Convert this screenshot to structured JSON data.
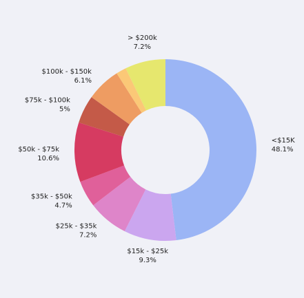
{
  "chart_data": {
    "type": "pie",
    "variant": "donut",
    "title": "",
    "slices": [
      {
        "label": "<$15K",
        "value": 48.1,
        "value_label": "48.1%",
        "color": "#9bb5f5"
      },
      {
        "label": "$15k - $25k",
        "value": 9.3,
        "value_label": "9.3%",
        "color": "#cba6ef"
      },
      {
        "label": "$25k - $35k",
        "value": 7.2,
        "value_label": "7.2%",
        "color": "#de85c9"
      },
      {
        "label": "$35k - $50k",
        "value": 4.7,
        "value_label": "4.7%",
        "color": "#e0609a"
      },
      {
        "label": "$50k - $75k",
        "value": 10.6,
        "value_label": "10.6%",
        "color": "#d63b61"
      },
      {
        "label": "$75k - $100k",
        "value": 5,
        "value_label": "5%",
        "color": "#c45a48"
      },
      {
        "label": "$100k - $150k",
        "value": 6.1,
        "value_label": "6.1%",
        "color": "#ee9c62"
      },
      {
        "label": "",
        "value": 1.8,
        "value_label": "",
        "color": "#fbc877"
      },
      {
        "label": "> $200k",
        "value": 7.2,
        "value_label": "7.2%",
        "color": "#e6e76e"
      }
    ],
    "legend": "none"
  }
}
